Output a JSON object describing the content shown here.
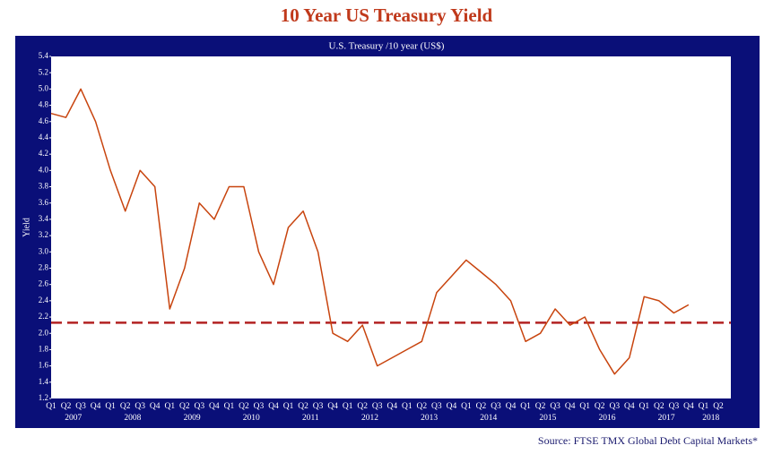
{
  "chart_data": {
    "type": "line",
    "title": "10 Year US Treasury Yield",
    "subtitle": "U.S. Treasury /10 year (US$)",
    "y_label": "Yield",
    "source": "Source: FTSE TMX Global Debt Capital Markets*",
    "categories": [
      "Q1",
      "Q2",
      "Q3",
      "Q4",
      "Q1",
      "Q2",
      "Q3",
      "Q4",
      "Q1",
      "Q2",
      "Q3",
      "Q4",
      "Q1",
      "Q2",
      "Q3",
      "Q4",
      "Q1",
      "Q2",
      "Q3",
      "Q4",
      "Q1",
      "Q2",
      "Q3",
      "Q4",
      "Q1",
      "Q2",
      "Q3",
      "Q4",
      "Q1",
      "Q2",
      "Q3",
      "Q4",
      "Q1",
      "Q2",
      "Q3",
      "Q4",
      "Q1",
      "Q2",
      "Q3",
      "Q4",
      "Q1",
      "Q2",
      "Q3",
      "Q4",
      "Q1",
      "Q2"
    ],
    "years": [
      "2007",
      "2008",
      "2009",
      "2010",
      "2011",
      "2012",
      "2013",
      "2014",
      "2015",
      "2016",
      "2017",
      "2018"
    ],
    "series": [
      {
        "name": "U.S. Treasury /10 year",
        "color": "#c8440e",
        "values": [
          4.7,
          4.65,
          5.0,
          4.6,
          4.0,
          3.5,
          4.0,
          3.8,
          2.3,
          2.8,
          3.6,
          3.4,
          3.8,
          3.8,
          3.0,
          2.6,
          3.3,
          3.5,
          3.0,
          2.0,
          1.9,
          2.1,
          1.6,
          1.7,
          1.8,
          1.9,
          2.5,
          2.7,
          2.9,
          2.75,
          2.6,
          2.4,
          1.9,
          2.0,
          2.3,
          2.1,
          2.2,
          1.8,
          1.5,
          1.7,
          2.45,
          2.4,
          2.25,
          2.35,
          null,
          null
        ]
      }
    ],
    "reference_line": 2.13,
    "reference_color": "#b22222",
    "ylim": [
      1.2,
      5.4
    ],
    "yticks": [
      1.2,
      1.4,
      1.6,
      1.8,
      {
        "value": 2,
        "label": "2.0"
      },
      2.2,
      2.4,
      2.6,
      2.8,
      {
        "value": 3,
        "label": "3.0"
      },
      3.2,
      3.4,
      3.6,
      3.8,
      {
        "value": 4,
        "label": "4.0"
      },
      4.2,
      4.4,
      4.6,
      4.8,
      {
        "value": 5,
        "label": "5.0"
      },
      5.2,
      5.4
    ]
  }
}
